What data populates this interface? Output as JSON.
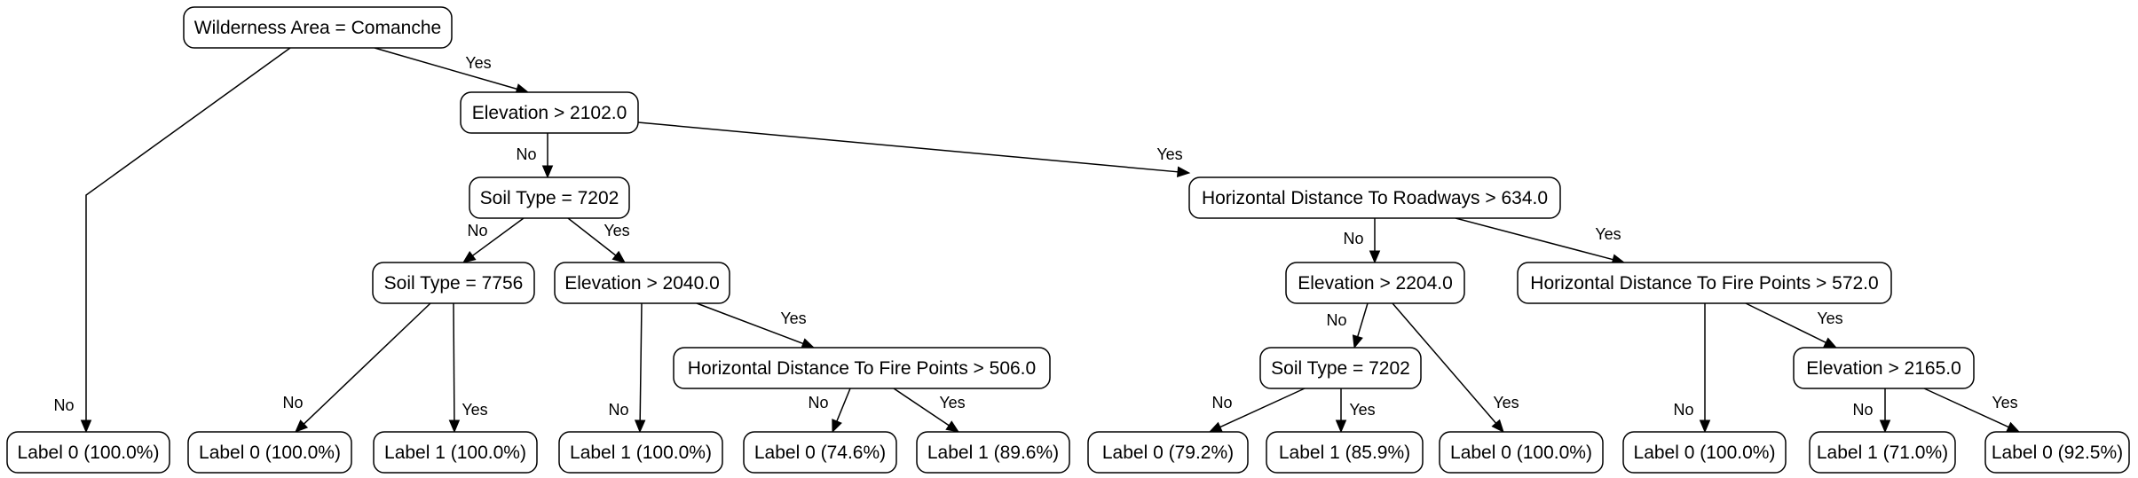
{
  "nodes": {
    "root": "Wilderness Area = Comanche",
    "elev2102": "Elevation > 2102.0",
    "soil7202a": "Soil Type = 7202",
    "hroad634": "Horizontal Distance To Roadways > 634.0",
    "soil7756": "Soil Type = 7756",
    "elev2040": "Elevation > 2040.0",
    "elev2204": "Elevation > 2204.0",
    "hfire572": "Horizontal Distance To Fire Points > 572.0",
    "hfire506": "Horizontal Distance To Fire Points > 506.0",
    "soil7202b": "Soil Type = 7202",
    "elev2165": "Elevation > 2165.0",
    "leaf1": "Label 0 (100.0%)",
    "leaf2": "Label 0 (100.0%)",
    "leaf3": "Label 1 (100.0%)",
    "leaf4": "Label 1 (100.0%)",
    "leaf5": "Label 0 (74.6%)",
    "leaf6": "Label 1 (89.6%)",
    "leaf7": "Label 0 (79.2%)",
    "leaf8": "Label 1 (85.9%)",
    "leaf9": "Label 0 (100.0%)",
    "leaf10": "Label 0 (100.0%)",
    "leaf11": "Label 1 (71.0%)",
    "leaf12": "Label 0 (92.5%)"
  },
  "edges": [
    {
      "from": "root",
      "to": "leaf1",
      "label": "No"
    },
    {
      "from": "root",
      "to": "elev2102",
      "label": "Yes"
    },
    {
      "from": "elev2102",
      "to": "soil7202a",
      "label": "No"
    },
    {
      "from": "elev2102",
      "to": "hroad634",
      "label": "Yes"
    },
    {
      "from": "soil7202a",
      "to": "soil7756",
      "label": "No"
    },
    {
      "from": "soil7202a",
      "to": "elev2040",
      "label": "Yes"
    },
    {
      "from": "soil7756",
      "to": "leaf2",
      "label": "No"
    },
    {
      "from": "soil7756",
      "to": "leaf3",
      "label": "Yes"
    },
    {
      "from": "elev2040",
      "to": "leaf4",
      "label": "No"
    },
    {
      "from": "elev2040",
      "to": "hfire506",
      "label": "Yes"
    },
    {
      "from": "hfire506",
      "to": "leaf5",
      "label": "No"
    },
    {
      "from": "hfire506",
      "to": "leaf6",
      "label": "Yes"
    },
    {
      "from": "hroad634",
      "to": "elev2204",
      "label": "No"
    },
    {
      "from": "hroad634",
      "to": "hfire572",
      "label": "Yes"
    },
    {
      "from": "elev2204",
      "to": "soil7202b",
      "label": "No"
    },
    {
      "from": "elev2204",
      "to": "leaf9",
      "label": "Yes"
    },
    {
      "from": "soil7202b",
      "to": "leaf7",
      "label": "No"
    },
    {
      "from": "soil7202b",
      "to": "leaf8",
      "label": "Yes"
    },
    {
      "from": "hfire572",
      "to": "leaf10",
      "label": "No"
    },
    {
      "from": "hfire572",
      "to": "elev2165",
      "label": "Yes"
    },
    {
      "from": "elev2165",
      "to": "leaf11",
      "label": "No"
    },
    {
      "from": "elev2165",
      "to": "leaf12",
      "label": "Yes"
    }
  ]
}
